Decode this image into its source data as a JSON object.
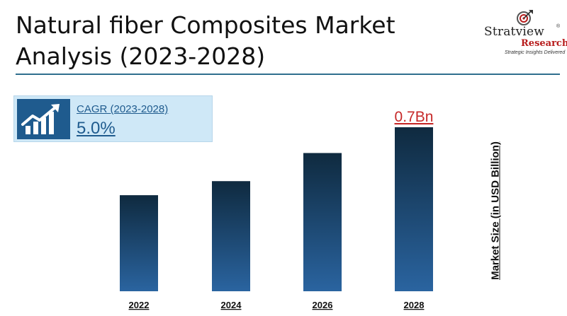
{
  "header": {
    "title_line1": "Natural fiber Composites Market",
    "title_line2": "Analysis (2023-2028)"
  },
  "logo": {
    "name": "Stratview",
    "registered": "®",
    "sub": "Research",
    "tagline": "Strategic Insights Delivered"
  },
  "cagr": {
    "label": "CAGR (2023-2028)",
    "value": "5.0%",
    "icon": "growth-chart-icon"
  },
  "colors": {
    "bar_top": "#0f2a3f",
    "bar_bottom": "#2a64a0",
    "highlight_label": "#c62828",
    "accent": "#1f5b8e"
  },
  "chart_data": {
    "type": "bar",
    "categories": [
      "2022",
      "2024",
      "2026",
      "2028"
    ],
    "values": [
      0.41,
      0.47,
      0.59,
      0.7
    ],
    "value_labels": [
      "",
      "",
      "",
      "0.7Bn"
    ],
    "ylabel": "Market Size (in USD Billion)",
    "ylim": [
      0,
      0.7
    ],
    "grid": false,
    "legend": "none"
  }
}
